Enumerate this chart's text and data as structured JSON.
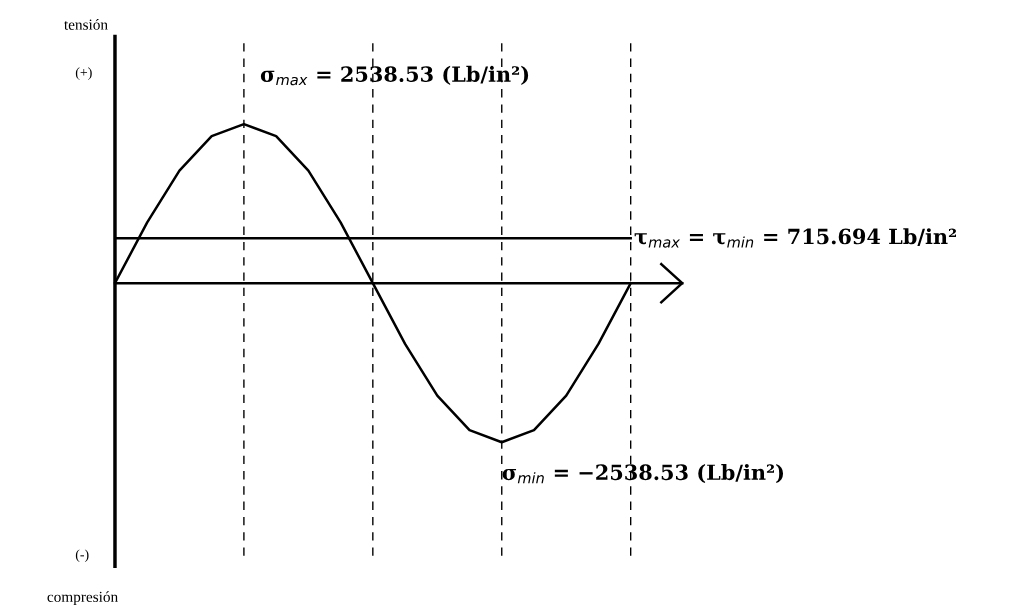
{
  "chart_data": {
    "type": "line",
    "categories": [
      null,
      null,
      null,
      null,
      null,
      null,
      null,
      null,
      null,
      null,
      null,
      null,
      null,
      null,
      null,
      null,
      null
    ],
    "series": [
      {
        "color": "#000000",
        "values": [
          0,
          970,
          1795,
          2345,
          2538.53,
          2345,
          1795,
          970,
          0,
          -970,
          -1795,
          -2345,
          -2538.53,
          -2345,
          -1795,
          -970,
          0
        ],
        "value_labels": [
          null,
          null,
          null,
          null,
          "σ$_{max}$ = 2538.53 (Lb/in²)",
          null,
          null,
          null,
          null,
          null,
          null,
          null,
          "σ$_{min}$ = −2538.53 (Lb/in²)",
          null,
          null,
          null,
          null
        ]
      }
    ],
    "grid": "x",
    "legend": false,
    "marker": "none",
    "line_style": "solid",
    "ref_lines": [
      {
        "axis": "y",
        "value": 715.694,
        "label": "τ$_{max}$ = τ$_{min}$ = 715.694 Lb/in²",
        "color": "#000000",
        "line_style": "solid"
      }
    ],
    "annotations": [
      "tensión",
      "(+)",
      "(-)",
      "compresión"
    ]
  }
}
